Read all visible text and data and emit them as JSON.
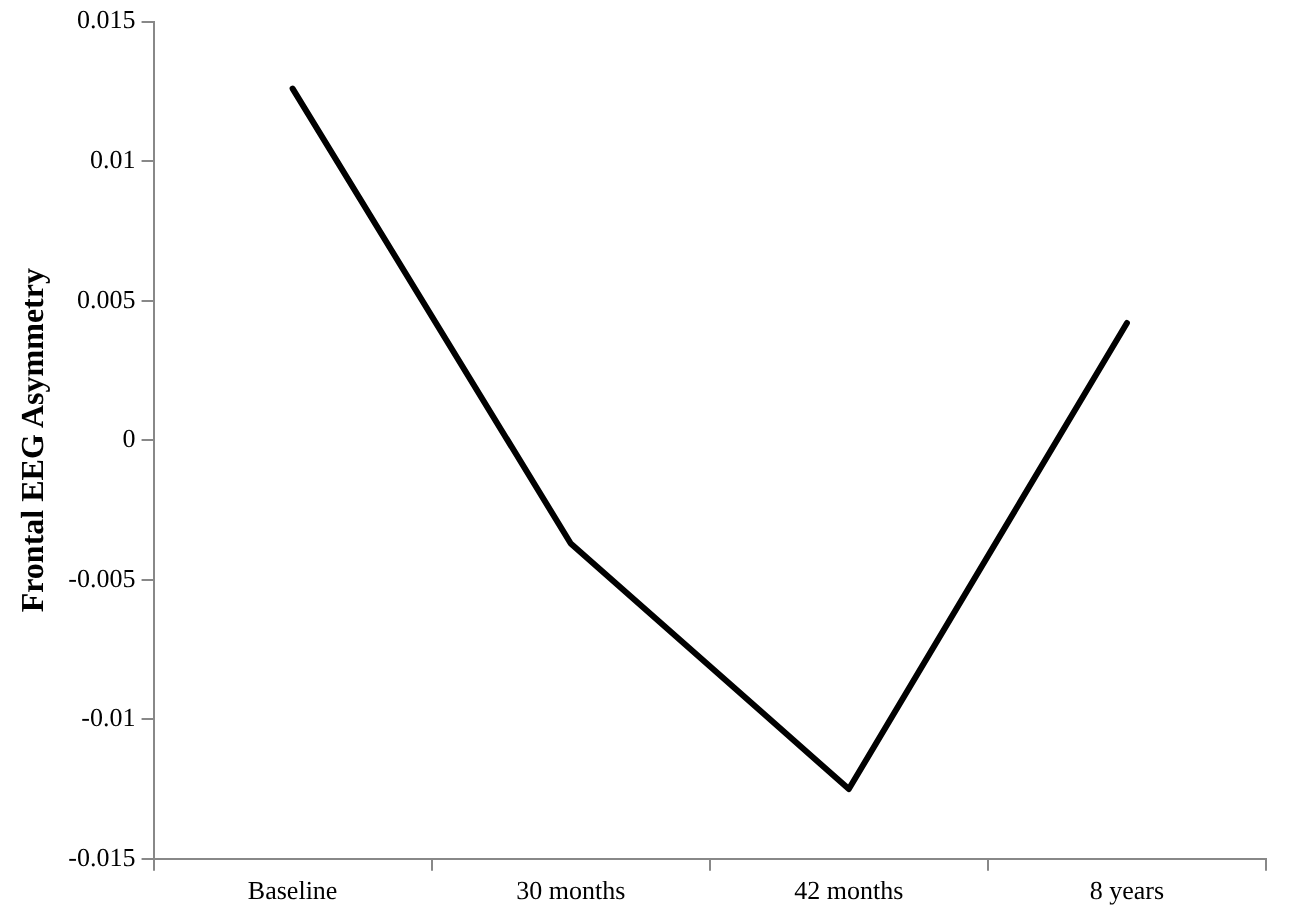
{
  "chart_data": {
    "type": "line",
    "ylabel": "Frontal EEG Asymmetry",
    "categories": [
      "Baseline",
      "30 months",
      "42 months",
      "8 years"
    ],
    "series": [
      {
        "color": "#000000",
        "values": [
          0.0126,
          -0.0037,
          -0.0125,
          0.0042
        ]
      }
    ],
    "ylim": [
      -0.015,
      0.015
    ],
    "yticks": [
      -0.015,
      -0.01,
      -0.005,
      0,
      0.005,
      0.01,
      0.015
    ],
    "grid": false,
    "legend": false,
    "marker": "none",
    "line_style": "solid"
  }
}
